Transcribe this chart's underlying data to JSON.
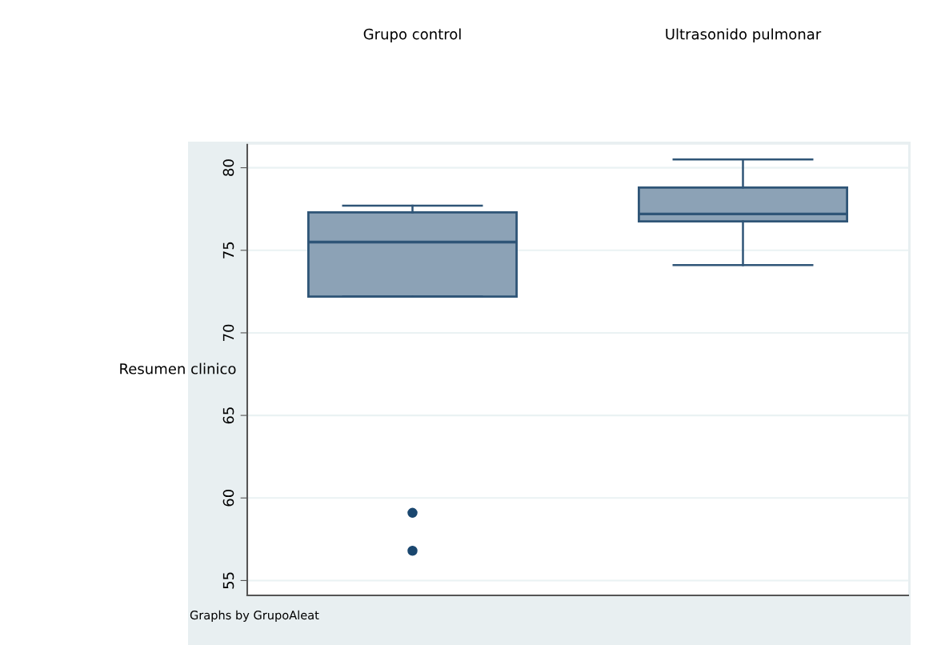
{
  "chart_data": {
    "type": "box",
    "ylabel": "Resumen clinico",
    "categories": [
      "Grupo control",
      "Ultrasonido pulmonar"
    ],
    "color": "#8ca2b6",
    "boxes": [
      {
        "low": 72.2,
        "q1": 72.2,
        "median": 75.5,
        "q3": 77.3,
        "high": 77.7,
        "outliers": [
          59.1,
          56.8
        ]
      },
      {
        "low": 74.1,
        "q1": 76.75,
        "median": 77.2,
        "q3": 78.8,
        "high": 80.5
      }
    ],
    "ylim": [
      54.1,
      81.4
    ],
    "yticks": [
      55,
      60,
      65,
      70,
      75,
      80
    ],
    "grid": "y",
    "annotations": [
      "Graphs by GrupoAleat"
    ]
  }
}
